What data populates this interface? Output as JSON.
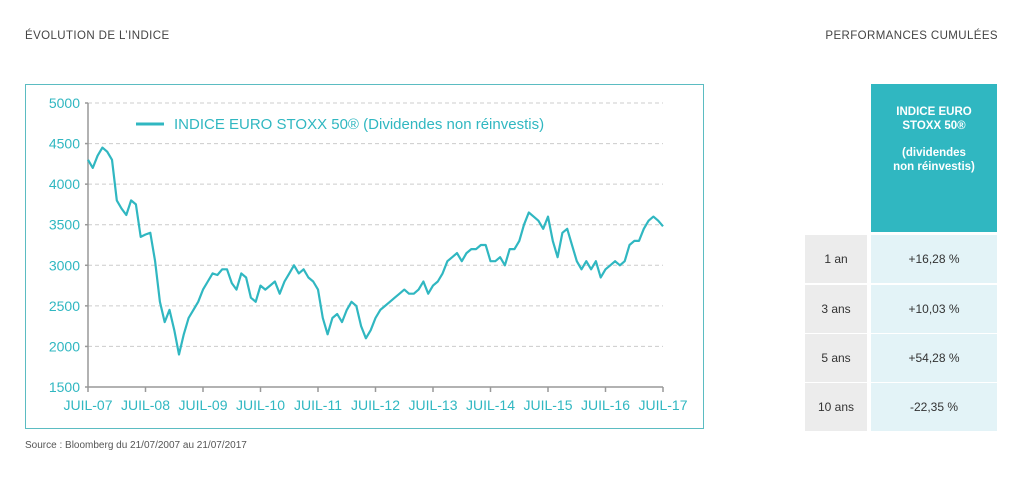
{
  "header": {
    "left_title": "ÉVOLUTION DE L’INDICE",
    "right_title": "PERFORMANCES CUMULÉES"
  },
  "source": "Source : Bloomberg du 21/07/2007 au 21/07/2017",
  "colors": {
    "accent": "#30b7c1",
    "grid": "#cccccc",
    "axis": "#999999",
    "frame": "#5bbcc2"
  },
  "chart_data": {
    "type": "line",
    "legend_position": "top-left",
    "grid": true,
    "ylim": [
      1500,
      5000
    ],
    "y_ticks": [
      1500,
      2000,
      2500,
      3000,
      3500,
      4000,
      4500,
      5000
    ],
    "x_tick_labels": [
      "JUIL-07",
      "JUIL-08",
      "JUIL-09",
      "JUIL-10",
      "JUIL-11",
      "JUIL-12",
      "JUIL-13",
      "JUIL-14",
      "JUIL-15",
      "JUIL-16",
      "JUIL-17"
    ],
    "series": [
      {
        "name": "INDICE EURO STOXX 50® (Dividendes non réinvestis)",
        "x": [
          "2007-07",
          "2007-08",
          "2007-09",
          "2007-10",
          "2007-11",
          "2007-12",
          "2008-01",
          "2008-02",
          "2008-03",
          "2008-04",
          "2008-05",
          "2008-06",
          "2008-07",
          "2008-08",
          "2008-09",
          "2008-10",
          "2008-11",
          "2008-12",
          "2009-01",
          "2009-02",
          "2009-03",
          "2009-04",
          "2009-05",
          "2009-06",
          "2009-07",
          "2009-08",
          "2009-09",
          "2009-10",
          "2009-11",
          "2009-12",
          "2010-01",
          "2010-02",
          "2010-03",
          "2010-04",
          "2010-05",
          "2010-06",
          "2010-07",
          "2010-08",
          "2010-09",
          "2010-10",
          "2010-11",
          "2010-12",
          "2011-01",
          "2011-02",
          "2011-03",
          "2011-04",
          "2011-05",
          "2011-06",
          "2011-07",
          "2011-08",
          "2011-09",
          "2011-10",
          "2011-11",
          "2011-12",
          "2012-01",
          "2012-02",
          "2012-03",
          "2012-04",
          "2012-05",
          "2012-06",
          "2012-07",
          "2012-08",
          "2012-09",
          "2012-10",
          "2012-11",
          "2012-12",
          "2013-01",
          "2013-02",
          "2013-03",
          "2013-04",
          "2013-05",
          "2013-06",
          "2013-07",
          "2013-08",
          "2013-09",
          "2013-10",
          "2013-11",
          "2013-12",
          "2014-01",
          "2014-02",
          "2014-03",
          "2014-04",
          "2014-05",
          "2014-06",
          "2014-07",
          "2014-08",
          "2014-09",
          "2014-10",
          "2014-11",
          "2014-12",
          "2015-01",
          "2015-02",
          "2015-03",
          "2015-04",
          "2015-05",
          "2015-06",
          "2015-07",
          "2015-08",
          "2015-09",
          "2015-10",
          "2015-11",
          "2015-12",
          "2016-01",
          "2016-02",
          "2016-03",
          "2016-04",
          "2016-05",
          "2016-06",
          "2016-07",
          "2016-08",
          "2016-09",
          "2016-10",
          "2016-11",
          "2016-12",
          "2017-01",
          "2017-02",
          "2017-03",
          "2017-04",
          "2017-05",
          "2017-06",
          "2017-07"
        ],
        "values": [
          4300,
          4200,
          4350,
          4450,
          4400,
          4300,
          3800,
          3700,
          3620,
          3800,
          3750,
          3350,
          3380,
          3400,
          3050,
          2550,
          2300,
          2450,
          2200,
          1900,
          2150,
          2350,
          2450,
          2550,
          2700,
          2800,
          2900,
          2880,
          2950,
          2950,
          2780,
          2700,
          2900,
          2850,
          2600,
          2550,
          2750,
          2700,
          2750,
          2800,
          2650,
          2800,
          2900,
          3000,
          2900,
          2950,
          2850,
          2800,
          2700,
          2350,
          2150,
          2350,
          2400,
          2300,
          2450,
          2550,
          2500,
          2250,
          2100,
          2200,
          2350,
          2450,
          2500,
          2550,
          2600,
          2650,
          2700,
          2650,
          2650,
          2700,
          2800,
          2650,
          2750,
          2800,
          2900,
          3050,
          3100,
          3150,
          3050,
          3150,
          3200,
          3200,
          3250,
          3250,
          3050,
          3050,
          3100,
          3000,
          3200,
          3200,
          3300,
          3500,
          3650,
          3600,
          3550,
          3450,
          3600,
          3300,
          3100,
          3400,
          3450,
          3250,
          3050,
          2950,
          3050,
          2950,
          3050,
          2850,
          2950,
          3000,
          3050,
          3000,
          3050,
          3250,
          3300,
          3300,
          3450,
          3550,
          3600,
          3550,
          3480
        ]
      }
    ]
  },
  "performance": {
    "header": {
      "line1": "INDICE EURO",
      "line2": "STOXX 50®",
      "line3": "(dividendes",
      "line4": "non réinvestis)"
    },
    "rows": [
      {
        "label": "1 an",
        "value": "+16,28 %"
      },
      {
        "label": "3 ans",
        "value": "+10,03 %"
      },
      {
        "label": "5 ans",
        "value": "+54,28 %"
      },
      {
        "label": "10 ans",
        "value": "-22,35 %"
      }
    ]
  }
}
